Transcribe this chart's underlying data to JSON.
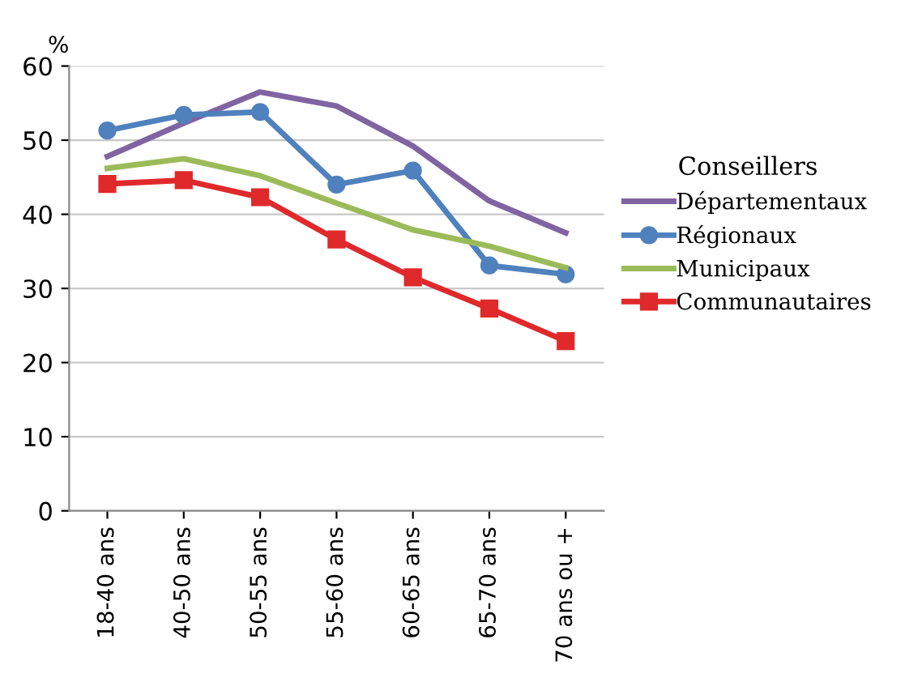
{
  "chart_data": {
    "type": "line",
    "ylabel": "%",
    "legend_title": "Conseillers",
    "legend": "right",
    "categories": [
      "18-40 ans",
      "40-50 ans",
      "50-55 ans",
      "55-60 ans",
      "60-65 ans",
      "65-70 ans",
      "70 ans ou +"
    ],
    "series": [
      {
        "name": "Départementaux",
        "color": "#8064a2",
        "marker": "none",
        "values": [
          47.8,
          52.3,
          56.5,
          54.6,
          49.2,
          41.8,
          37.5
        ]
      },
      {
        "name": "Régionaux",
        "color": "#4f81bd",
        "marker": "circle",
        "values": [
          51.3,
          53.4,
          53.8,
          44.0,
          45.9,
          33.1,
          31.9
        ]
      },
      {
        "name": "Municipaux",
        "color": "#9bbb59",
        "marker": "none",
        "values": [
          46.2,
          47.5,
          45.2,
          41.5,
          37.9,
          35.7,
          32.8
        ]
      },
      {
        "name": "Communautaires",
        "color": "#e0292b",
        "marker": "square",
        "values": [
          44.1,
          44.6,
          42.3,
          36.6,
          31.5,
          27.3,
          22.9
        ]
      }
    ],
    "ylim": [
      0,
      60
    ],
    "yticks": [
      0,
      10,
      20,
      30,
      40,
      50,
      60
    ],
    "grid": "y"
  }
}
